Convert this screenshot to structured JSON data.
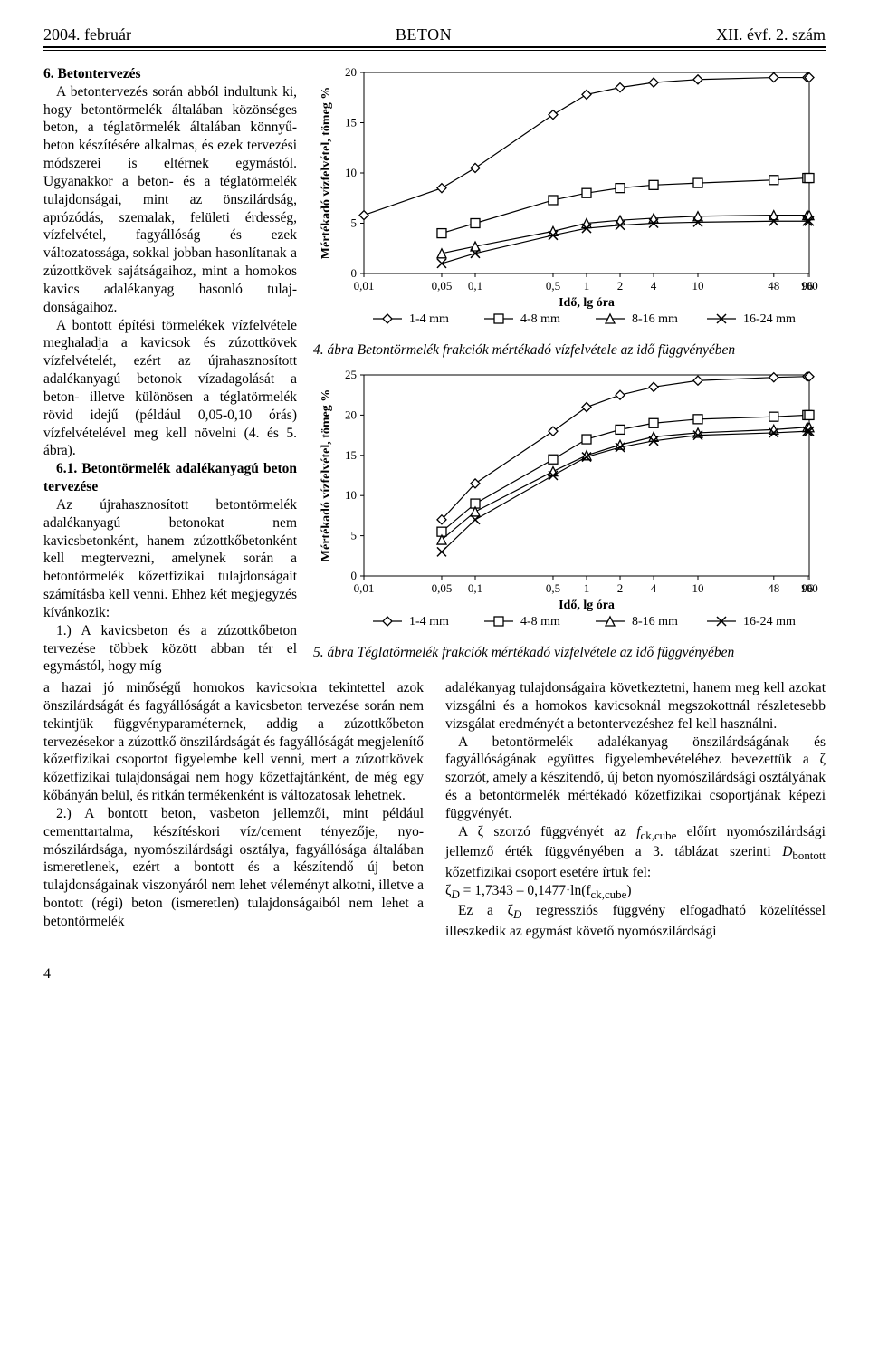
{
  "header": {
    "left": "2004. február",
    "center": "BETON",
    "right": "XII. évf. 2. szám"
  },
  "section6": {
    "heading": "6. Betontervezés",
    "para1": "A betontervezés során abból indultunk ki, hogy betontörmelék általában közönséges beton, a téglatörmelék általában könnyű­beton készítésére alkalmas, és ezek tervezési módszerei is el­térnek egymástól. Ugyanakkor a beton- és a téglatörmelék tulaj­donságai, mint az önszilárdság, aprózódás, szemalak, felületi ér­desség, vízfelvétel, fagyállóság és ezek változatossága, sokkal job­ban hasonlítanak a zúzottkövek sajátságaihoz, mint a homokos kavics adalékanyag hasonló tulaj­donságaihoz.",
    "para2": "A bontott építési törmelékek vízfelvétele meghaladja a kavi­csok és zúzottkövek vízfelvételét, ezért az újrahasznosított adalék­anyagú betonok vízadagolását a beton- illetve különösen a téglatörmelék rövid idejű (például 0,05-0,10 órás) vízfelvételével meg kell növelni (4. és 5. ábra).",
    "sub61_heading": "6.1. Betontörmelék adalék­anyagú beton tervezése",
    "para3": "Az újrahasznosított betontör­melék adalékanyagú betonokat nem kavicsbetonként, hanem zú­zottkőbetonként kell megtervezni, amelynek során a betontörmelék kőzetfizikai tulajdonságait számí­tásba kell venni. Ehhez két meg­jegyzés kívánkozik:",
    "para4": "1.) A kavicsbeton és a zúzott­kőbeton tervezése többek között abban tér el egymástól, hogy míg"
  },
  "bottom_left": {
    "p1": "a hazai jó minőségű homokos kavicsokra tekintettel azok önszilárdságát és fagyállóságát a kavicsbeton tervezése során nem tekintjük függvényparaméternek, addig a zúzottkőbeton tervezésekor a zúzottkő ön­szilárdságát és fagyállóságát megjelenítő kőzetfizikai csoportot figyelembe kell venni, mert a zúzottkövek kőzetfizikai tulajdonságai nem hogy kőzetfajtánként, de még egy kőbányán belül, és ritkán termékenként is változatosak lehetnek.",
    "p2": "2.) A bontott beton, vasbeton jellemzői, mint például cementtartalma, készítéskori víz/cement tényezője, nyo­mószilárdsága, nyomószilárdsági osztálya, fagyállósága általában ismeretlenek, ezért a bontott és a készítendő új beton tulajdonságainak viszonyáról nem lehet véleményt alkotni, illetve a bontott (régi) beton (ismeretlen) tulajdonságaiból nem lehet a betontörmelék"
  },
  "bottom_right": {
    "p1": "adalékanyag tulajdonságaira következtetni, hanem meg kell azokat vizsgálni és a homokos kavicsoknál megszokottnál részletesebb vizsgálat eredményét a betontervezéshez fel kell használni.",
    "p2": "A betontörmelék adalékanyag önszilárdságának és fagyállóságának együttes figyelembevételéhez bevezet­tük a ζ szorzót, amely a készítendő, új beton nyomó­szilárdsági osztályának és a betontörmelék mértékadó kőzetfizikai csoportjának képezi függvényét.",
    "p3_a": "A ζ szorzó függvényét az ",
    "p3_i": "f",
    "p3_sub": "ck,cube",
    "p3_b": " előírt nyomó­szilárdsági jellemző érték függvényében a 3. táblázat szerinti ",
    "p3_i2": "D",
    "p3_sub2": "bontott",
    "p3_c": " kőzetfizikai csoport esetére írtuk fel:",
    "formula": "ζᴰ = 1,7343 – 0,1477·ln(fᴄᴋ,ᴄᴜᴇᴇ)",
    "p4_a": "Ez a ζ",
    "p4_sub": "D",
    "p4_b": " regressziós függvény elfogadható közelítés­sel illeszkedik az egymást követő nyomószilárdsági"
  },
  "chart4": {
    "caption": "4. ábra Betontörmelék frakciók mértékadó vízfelvétele az idő függvényében",
    "ylabel": "Mértékadó vízfelvétel, tömeg %",
    "xlabel": "Idő, lg óra",
    "ylim": [
      0,
      20
    ],
    "yticks": [
      0,
      5,
      10,
      15,
      20
    ],
    "xticks_log": [
      0.01,
      0.05,
      0.1,
      0.5,
      1,
      2,
      4,
      10,
      48,
      96,
      100
    ],
    "xtick_labels": [
      "0,01",
      "0,05",
      "0,1",
      "0,5",
      "1",
      "2",
      "4",
      "10",
      "48",
      "96",
      "100"
    ],
    "legend": [
      "1-4 mm",
      "4-8 mm",
      "8-16 mm",
      "16-24 mm"
    ],
    "series": [
      {
        "label": "1-4 mm",
        "marker": "diamond",
        "y": [
          5.8,
          8.5,
          10.5,
          15.8,
          17.8,
          18.5,
          19.0,
          19.3,
          19.5,
          19.5,
          19.5
        ]
      },
      {
        "label": "4-8 mm",
        "marker": "square",
        "y": [
          null,
          4.0,
          5.0,
          7.3,
          8.0,
          8.5,
          8.8,
          9.0,
          9.3,
          9.5,
          9.5
        ]
      },
      {
        "label": "8-16 mm",
        "marker": "triangle",
        "y": [
          null,
          2.0,
          2.7,
          4.2,
          5.0,
          5.3,
          5.5,
          5.7,
          5.8,
          5.8,
          5.8
        ]
      },
      {
        "label": "16-24 mm",
        "marker": "x",
        "y": [
          null,
          1.0,
          2.0,
          3.8,
          4.5,
          4.8,
          5.0,
          5.1,
          5.2,
          5.2,
          5.2
        ]
      }
    ],
    "colors": {
      "line": "#000000",
      "grid": "#000000",
      "bg": "#ffffff"
    },
    "line_width": 1.2
  },
  "chart5": {
    "caption": "5. ábra Téglatörmelék frakciók mértékadó vízfelvétele az idő függvényében",
    "ylabel": "Mértékadó vízfelvétel, tömeg %",
    "xlabel": "Idő, lg óra",
    "ylim": [
      0,
      25
    ],
    "yticks": [
      0,
      5,
      10,
      15,
      20,
      25
    ],
    "xticks_log": [
      0.01,
      0.05,
      0.1,
      0.5,
      1,
      2,
      4,
      10,
      48,
      96,
      100
    ],
    "xtick_labels": [
      "0,01",
      "0,05",
      "0,1",
      "0,5",
      "1",
      "2",
      "4",
      "10",
      "48",
      "96",
      "100"
    ],
    "legend": [
      "1-4 mm",
      "4-8 mm",
      "8-16 mm",
      "16-24 mm"
    ],
    "series": [
      {
        "label": "1-4 mm",
        "marker": "diamond",
        "y": [
          null,
          7.0,
          11.5,
          18.0,
          21.0,
          22.5,
          23.5,
          24.3,
          24.7,
          24.8,
          24.8
        ]
      },
      {
        "label": "4-8 mm",
        "marker": "square",
        "y": [
          null,
          5.5,
          9.0,
          14.5,
          17.0,
          18.2,
          19.0,
          19.5,
          19.8,
          20.0,
          20.0
        ]
      },
      {
        "label": "8-16 mm",
        "marker": "triangle",
        "y": [
          null,
          4.5,
          8.0,
          13.0,
          15.0,
          16.3,
          17.3,
          17.8,
          18.2,
          18.5,
          18.5
        ]
      },
      {
        "label": "16-24 mm",
        "marker": "x",
        "y": [
          null,
          3.0,
          7.0,
          12.5,
          14.8,
          16.0,
          16.8,
          17.5,
          17.8,
          18.0,
          18.0
        ]
      }
    ],
    "colors": {
      "line": "#000000",
      "grid": "#000000",
      "bg": "#ffffff"
    },
    "line_width": 1.2
  },
  "page_number": "4"
}
